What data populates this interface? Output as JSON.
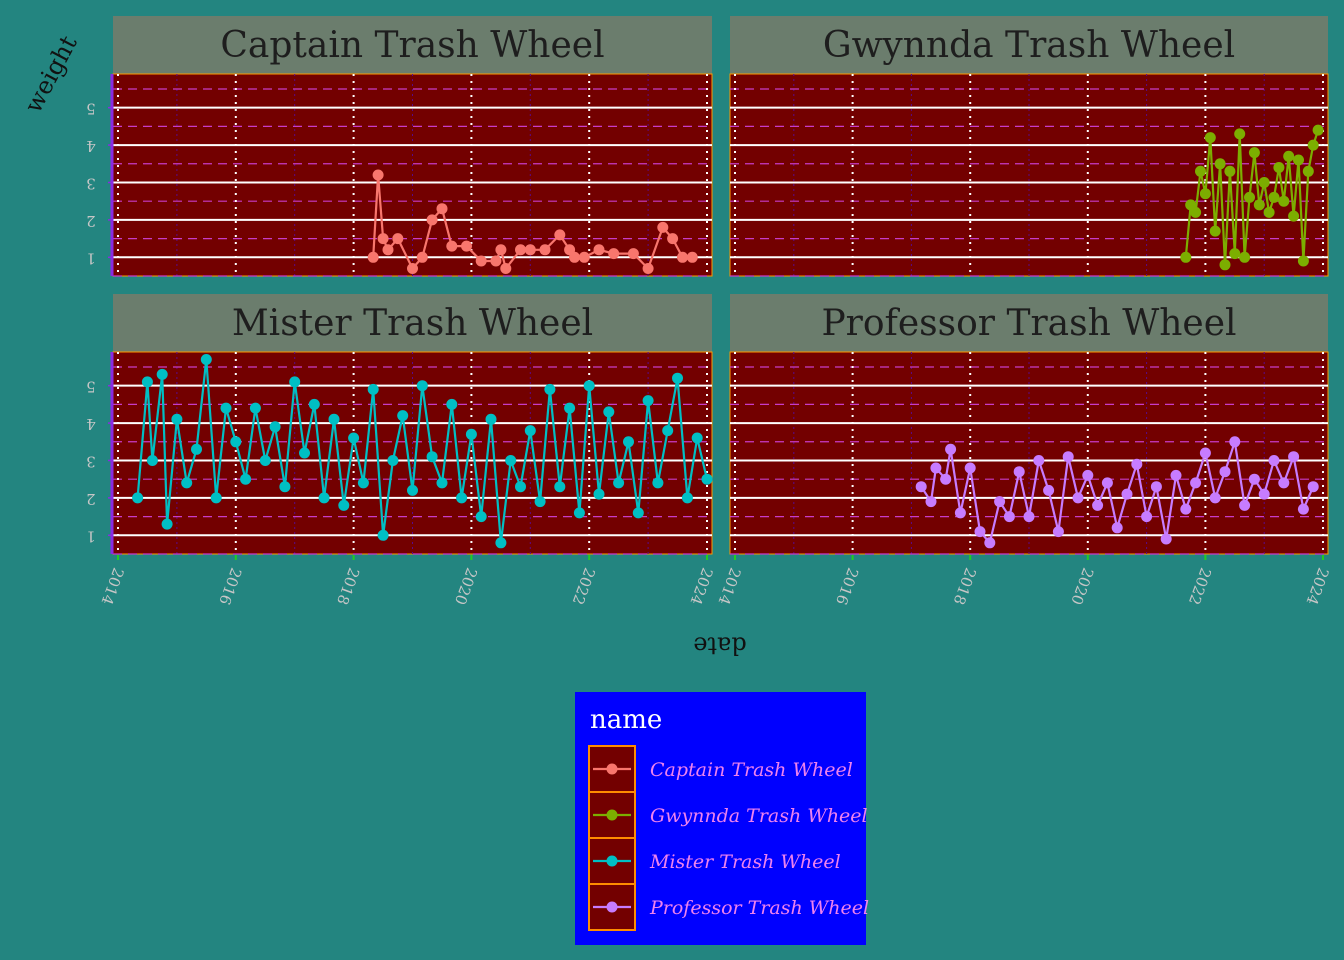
{
  "chart_data": {
    "type": "line",
    "facets": [
      "Captain Trash Wheel",
      "Gwynnda Trash Wheel",
      "Mister Trash Wheel",
      "Professor Trash Wheel"
    ],
    "xlabel": "date",
    "ylabel": "weight",
    "x_ticks": [
      "2014",
      "2016",
      "2018",
      "2020",
      "2022",
      "2024"
    ],
    "y_ticks": [
      "1",
      "2",
      "3",
      "4",
      "5"
    ],
    "xlim": [
      "2014-01-01",
      "2024-01-01"
    ],
    "ylim": [
      0.5,
      5.9
    ],
    "legend": {
      "title": "name",
      "position": "bottom",
      "entries": [
        "Captain Trash Wheel",
        "Gwynnda Trash Wheel",
        "Mister Trash Wheel",
        "Professor Trash Wheel"
      ]
    },
    "colors": {
      "Captain Trash Wheel": "#F8766D",
      "Gwynnda Trash Wheel": "#7CAE00",
      "Mister Trash Wheel": "#00BFC4",
      "Professor Trash Wheel": "#C77CFF",
      "page_background": "#238580",
      "panel_background": "#730000",
      "strip_background": "#6B7D6D",
      "legend_background": "#0000FF",
      "legend_key_border": "#FF8C00"
    },
    "series": [
      {
        "name": "Captain Trash Wheel",
        "x": [
          "2018-05-01",
          "2018-06-01",
          "2018-07-01",
          "2018-08-01",
          "2018-10-01",
          "2019-01-01",
          "2019-03-01",
          "2019-05-01",
          "2019-07-01",
          "2019-09-01",
          "2019-12-01",
          "2020-03-01",
          "2020-06-01",
          "2020-07-01",
          "2020-08-01",
          "2020-11-01",
          "2021-01-01",
          "2021-04-01",
          "2021-07-01",
          "2021-09-01",
          "2021-10-01",
          "2021-12-01",
          "2022-03-01",
          "2022-06-01",
          "2022-10-01",
          "2023-01-01",
          "2023-04-01",
          "2023-06-01",
          "2023-08-01",
          "2023-10-01"
        ],
        "y": [
          1.0,
          3.2,
          1.5,
          1.2,
          1.5,
          0.7,
          1.0,
          2.0,
          2.3,
          1.3,
          1.3,
          0.9,
          0.9,
          1.2,
          0.7,
          1.2,
          1.2,
          1.2,
          1.6,
          1.2,
          1.0,
          1.0,
          1.2,
          1.1,
          1.1,
          0.7,
          1.8,
          1.5,
          1.0,
          1.0
        ]
      },
      {
        "name": "Gwynnda Trash Wheel",
        "x": [
          "2021-09-01",
          "2021-10-01",
          "2021-11-01",
          "2021-12-01",
          "2022-01-01",
          "2022-02-01",
          "2022-03-01",
          "2022-04-01",
          "2022-05-01",
          "2022-06-01",
          "2022-07-01",
          "2022-08-01",
          "2022-09-01",
          "2022-10-01",
          "2022-11-01",
          "2022-12-01",
          "2023-01-01",
          "2023-02-01",
          "2023-03-01",
          "2023-04-01",
          "2023-05-01",
          "2023-06-01",
          "2023-07-01",
          "2023-08-01",
          "2023-09-01",
          "2023-10-01",
          "2023-11-01",
          "2023-12-01"
        ],
        "y": [
          1.0,
          2.4,
          2.2,
          3.3,
          2.7,
          4.2,
          1.7,
          3.5,
          0.8,
          3.3,
          1.1,
          4.3,
          1.0,
          2.6,
          3.8,
          2.4,
          3.0,
          2.2,
          2.6,
          3.4,
          2.5,
          3.7,
          2.1,
          3.6,
          0.9,
          3.3,
          4.0,
          4.4
        ]
      },
      {
        "name": "Mister Trash Wheel",
        "x": [
          "2014-05-01",
          "2014-07-01",
          "2014-08-01",
          "2014-10-01",
          "2014-11-01",
          "2015-01-01",
          "2015-03-01",
          "2015-05-01",
          "2015-07-01",
          "2015-09-01",
          "2015-11-01",
          "2016-01-01",
          "2016-03-01",
          "2016-05-01",
          "2016-07-01",
          "2016-09-01",
          "2016-11-01",
          "2017-01-01",
          "2017-03-01",
          "2017-05-01",
          "2017-07-01",
          "2017-09-01",
          "2017-11-01",
          "2018-01-01",
          "2018-03-01",
          "2018-05-01",
          "2018-07-01",
          "2018-09-01",
          "2018-11-01",
          "2019-01-01",
          "2019-03-01",
          "2019-05-01",
          "2019-07-01",
          "2019-09-01",
          "2019-11-01",
          "2020-01-01",
          "2020-03-01",
          "2020-05-01",
          "2020-07-01",
          "2020-09-01",
          "2020-11-01",
          "2021-01-01",
          "2021-03-01",
          "2021-05-01",
          "2021-07-01",
          "2021-09-01",
          "2021-11-01",
          "2022-01-01",
          "2022-03-01",
          "2022-05-01",
          "2022-07-01",
          "2022-09-01",
          "2022-11-01",
          "2023-01-01",
          "2023-03-01",
          "2023-05-01",
          "2023-07-01",
          "2023-09-01",
          "2023-11-01",
          "2024-01-01"
        ],
        "y": [
          2.0,
          5.1,
          3.0,
          5.3,
          1.3,
          4.1,
          2.4,
          3.3,
          5.7,
          2.0,
          4.4,
          3.5,
          2.5,
          4.4,
          3.0,
          3.9,
          2.3,
          5.1,
          3.2,
          4.5,
          2.0,
          4.1,
          1.8,
          3.6,
          2.4,
          4.9,
          1.0,
          3.0,
          4.2,
          2.2,
          5.0,
          3.1,
          2.4,
          4.5,
          2.0,
          3.7,
          1.5,
          4.1,
          0.8,
          3.0,
          2.3,
          3.8,
          1.9,
          4.9,
          2.3,
          4.4,
          1.6,
          5.0,
          2.1,
          4.3,
          2.4,
          3.5,
          1.6,
          4.6,
          2.4,
          3.8,
          5.2,
          2.0,
          3.6,
          2.5
        ]
      },
      {
        "name": "Professor Trash Wheel",
        "x": [
          "2017-03-01",
          "2017-05-01",
          "2017-06-01",
          "2017-08-01",
          "2017-09-01",
          "2017-11-01",
          "2018-01-01",
          "2018-03-01",
          "2018-05-01",
          "2018-07-01",
          "2018-09-01",
          "2018-11-01",
          "2019-01-01",
          "2019-03-01",
          "2019-05-01",
          "2019-07-01",
          "2019-09-01",
          "2019-11-01",
          "2020-01-01",
          "2020-03-01",
          "2020-05-01",
          "2020-07-01",
          "2020-09-01",
          "2020-11-01",
          "2021-01-01",
          "2021-03-01",
          "2021-05-01",
          "2021-07-01",
          "2021-09-01",
          "2021-11-01",
          "2022-01-01",
          "2022-03-01",
          "2022-05-01",
          "2022-07-01",
          "2022-09-01",
          "2022-11-01",
          "2023-01-01",
          "2023-03-01",
          "2023-05-01",
          "2023-07-01",
          "2023-09-01",
          "2023-11-01"
        ],
        "y": [
          2.3,
          1.9,
          2.8,
          2.5,
          3.3,
          1.6,
          2.8,
          1.1,
          0.8,
          1.9,
          1.5,
          2.7,
          1.5,
          3.0,
          2.2,
          1.1,
          3.1,
          2.0,
          2.6,
          1.8,
          2.4,
          1.2,
          2.1,
          2.9,
          1.5,
          2.3,
          0.9,
          2.6,
          1.7,
          2.4,
          3.2,
          2.0,
          2.7,
          3.5,
          1.8,
          2.5,
          2.1,
          3.0,
          2.4,
          3.1,
          1.7,
          2.3
        ]
      }
    ]
  }
}
